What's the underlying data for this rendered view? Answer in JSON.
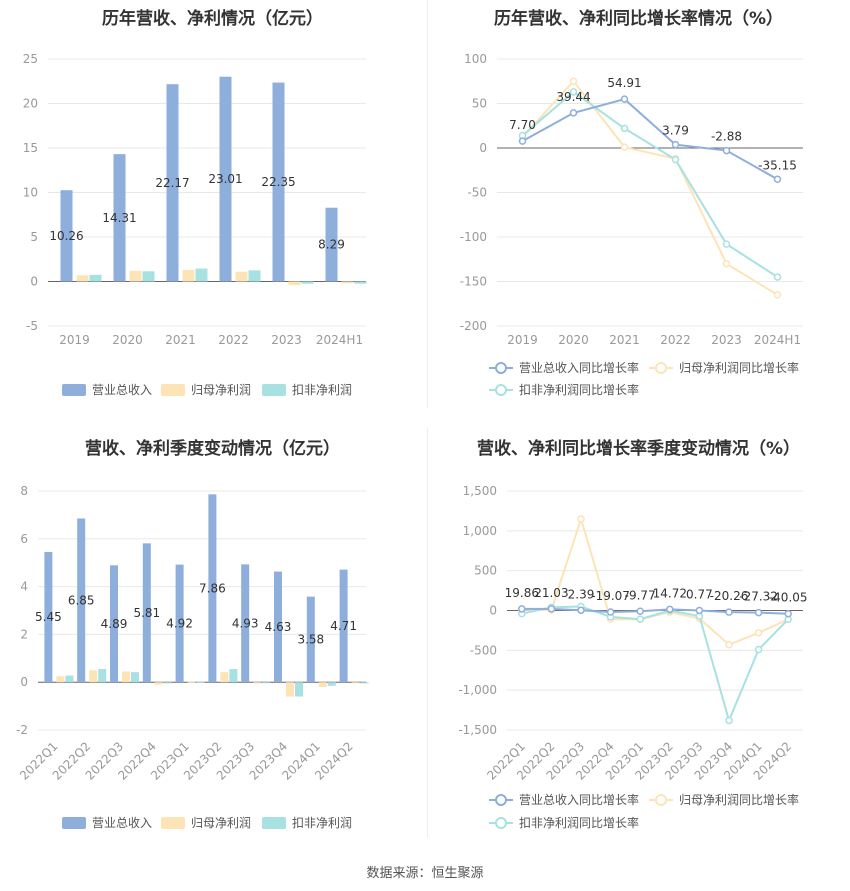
{
  "colors": {
    "revenue": "#8eaedc",
    "net_profit": "#fde4b6",
    "deducted_profit": "#a8e1e2",
    "grid": "#e8e8e8",
    "axis_text": "#999999",
    "label_text": "#333333"
  },
  "chart_data": [
    {
      "id": "annual_values",
      "type": "bar",
      "title": "历年营收、净利情况（亿元）",
      "categories": [
        "2019",
        "2020",
        "2021",
        "2022",
        "2023",
        "2024H1"
      ],
      "series": [
        {
          "name": "营业总收入",
          "values": [
            10.26,
            14.31,
            22.17,
            23.01,
            22.35,
            8.29
          ]
        },
        {
          "name": "归母净利润",
          "values": [
            0.7,
            1.2,
            1.3,
            1.1,
            -0.4,
            -0.2
          ]
        },
        {
          "name": "扣非净利润",
          "values": [
            0.75,
            1.15,
            1.45,
            1.25,
            -0.25,
            -0.25
          ]
        }
      ],
      "labels": [
        "10.26",
        "14.31",
        "22.17",
        "23.01",
        "22.35",
        "8.29"
      ],
      "yticks": [
        "-5",
        "0",
        "5",
        "10",
        "15",
        "20",
        "25"
      ],
      "ylim": [
        -5,
        25
      ],
      "legend": [
        "营业总收入",
        "归母净利润",
        "扣非净利润"
      ]
    },
    {
      "id": "annual_growth",
      "type": "line",
      "title": "历年营收、净利同比增长率情况（%）",
      "categories": [
        "2019",
        "2020",
        "2021",
        "2022",
        "2023",
        "2024H1"
      ],
      "series": [
        {
          "name": "营业总收入同比增长率",
          "values": [
            7.7,
            39.44,
            54.91,
            3.79,
            -2.88,
            -35.15
          ]
        },
        {
          "name": "归母净利润同比增长率",
          "values": [
            12,
            75,
            1,
            -12,
            -130,
            -165
          ]
        },
        {
          "name": "扣非净利润同比增长率",
          "values": [
            14,
            63,
            22,
            -13,
            -108,
            -145
          ]
        }
      ],
      "labels": [
        "7.70",
        "39.44",
        "54.91",
        "3.79",
        "-2.88",
        "-35.15"
      ],
      "yticks": [
        "-200",
        "-150",
        "-100",
        "-50",
        "0",
        "50",
        "100"
      ],
      "ylim": [
        -200,
        100
      ],
      "legend": [
        "营业总收入同比增长率",
        "归母净利润同比增长率",
        "扣非净利润同比增长率"
      ]
    },
    {
      "id": "quarterly_values",
      "type": "bar",
      "title": "营收、净利季度变动情况（亿元）",
      "categories": [
        "2022Q1",
        "2022Q2",
        "2022Q3",
        "2022Q4",
        "2023Q1",
        "2023Q2",
        "2023Q3",
        "2023Q4",
        "2024Q1",
        "2024Q2"
      ],
      "series": [
        {
          "name": "营业总收入",
          "values": [
            5.45,
            6.85,
            4.89,
            5.81,
            4.92,
            7.86,
            4.93,
            4.63,
            3.58,
            4.71
          ]
        },
        {
          "name": "归母净利润",
          "values": [
            0.25,
            0.5,
            0.45,
            -0.1,
            0.02,
            0.42,
            -0.05,
            -0.6,
            -0.2,
            -0.05
          ]
        },
        {
          "name": "扣非净利润",
          "values": [
            0.28,
            0.55,
            0.42,
            -0.05,
            0.02,
            0.55,
            0.0,
            -0.6,
            -0.15,
            -0.05
          ]
        }
      ],
      "labels": [
        "5.45",
        "6.85",
        "4.89",
        "5.81",
        "4.92",
        "7.86",
        "4.93",
        "4.63",
        "3.58",
        "4.71"
      ],
      "yticks": [
        "-2",
        "0",
        "2",
        "4",
        "6",
        "8"
      ],
      "ylim": [
        -2,
        8
      ],
      "legend": [
        "营业总收入",
        "归母净利润",
        "扣非净利润"
      ]
    },
    {
      "id": "quarterly_growth",
      "type": "line",
      "title": "营收、净利同比增长率季度变动情况（%）",
      "categories": [
        "2022Q1",
        "2022Q2",
        "2022Q3",
        "2022Q4",
        "2023Q1",
        "2023Q2",
        "2023Q3",
        "2023Q4",
        "2024Q1",
        "2024Q2"
      ],
      "series": [
        {
          "name": "营业总收入同比增长率",
          "values": [
            19.86,
            21.03,
            2.39,
            -19.07,
            -9.77,
            14.72,
            0.77,
            -20.26,
            -27.32,
            -40.05
          ]
        },
        {
          "name": "归母净利润同比增长率",
          "values": [
            10,
            5,
            1150,
            -110,
            -110,
            -20,
            -100,
            -430,
            -280,
            -110
          ]
        },
        {
          "name": "扣非净利润同比增长率",
          "values": [
            -40,
            40,
            50,
            -80,
            -110,
            0,
            -70,
            -1380,
            -490,
            -110
          ]
        }
      ],
      "labels": [
        "19.86",
        "21.03",
        "2.39",
        "-19.07",
        "-9.77",
        "14.72",
        "0.77",
        "-20.26",
        "-27.32",
        "-40.05"
      ],
      "yticks": [
        "-1,500",
        "-1,000",
        "-500",
        "0",
        "500",
        "1,000",
        "1,500"
      ],
      "ylim": [
        -1500,
        1500
      ],
      "legend": [
        "营业总收入同比增长率",
        "归母净利润同比增长率",
        "扣非净利润同比增长率"
      ]
    }
  ],
  "footer": "数据来源：恒生聚源"
}
